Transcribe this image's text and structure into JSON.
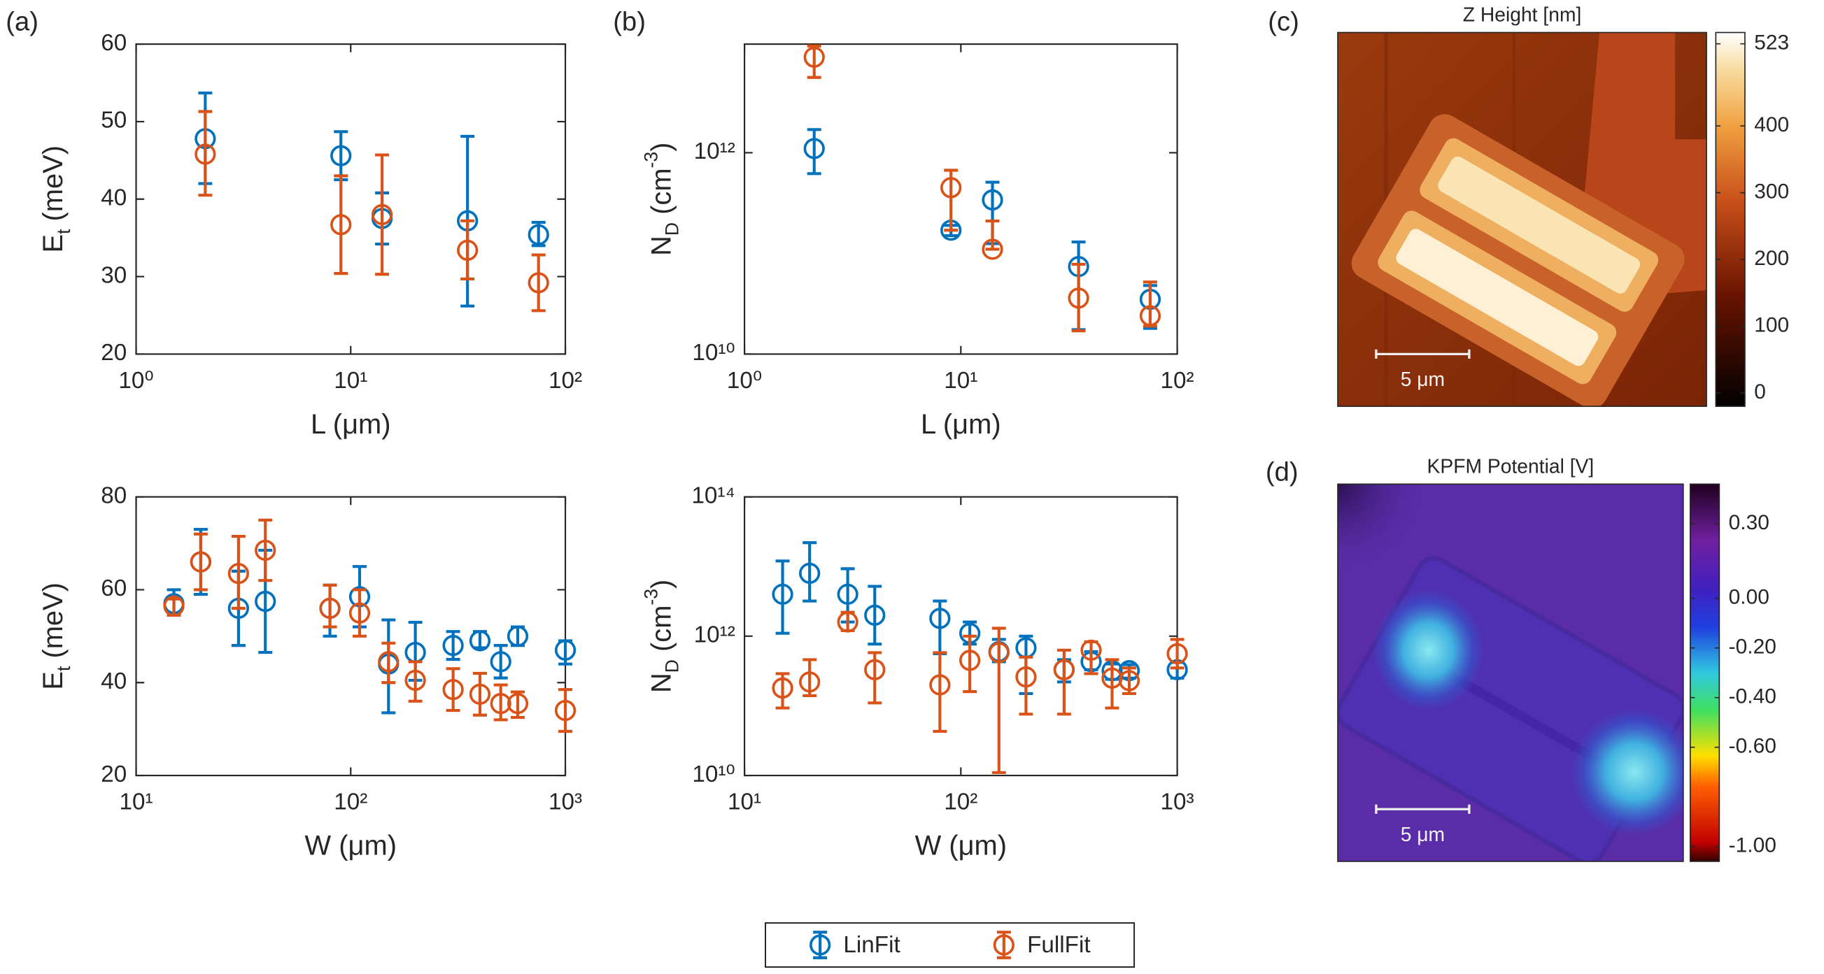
{
  "chart_data": [
    {
      "type": "errorbar",
      "panel": "(a)",
      "xlabel": "L (μm)",
      "ylabel": [
        {
          "text": "E"
        },
        {
          "text": "t",
          "shift": "sub"
        },
        {
          "text": " (meV)"
        }
      ],
      "xscale": "log",
      "yscale": "linear",
      "xlim": [
        1,
        100
      ],
      "ylim": [
        20,
        60
      ],
      "xticks": [
        {
          "value": 1,
          "label": "10⁰"
        },
        {
          "value": 10,
          "label": "10¹"
        },
        {
          "value": 100,
          "label": "10²"
        }
      ],
      "yticks": [
        20,
        30,
        40,
        50,
        60
      ],
      "x": [
        2.1,
        9,
        14,
        35,
        75
      ],
      "series": [
        {
          "name": "LinFit",
          "color": "#0072bd",
          "values": [
            47.8,
            45.6,
            37.5,
            37.2,
            35.4
          ],
          "low": [
            42,
            42.5,
            34.2,
            26.2,
            34
          ],
          "high": [
            53.7,
            48.7,
            40.8,
            48.1,
            37
          ]
        },
        {
          "name": "FullFit",
          "color": "#d95319",
          "values": [
            45.8,
            36.7,
            38,
            33.4,
            29.2
          ],
          "low": [
            40.5,
            30.4,
            30.3,
            29.7,
            25.6
          ],
          "high": [
            51.3,
            43,
            45.7,
            37.2,
            32.8
          ]
        }
      ]
    },
    {
      "type": "errorbar",
      "panel": "(b)",
      "xlabel": "L (μm)",
      "ylabel": [
        {
          "text": "N"
        },
        {
          "text": "D",
          "shift": "sub"
        },
        {
          "text": " (cm"
        },
        {
          "text": "-3",
          "shift": "super"
        },
        {
          "text": ")"
        }
      ],
      "xscale": "log",
      "yscale": "log",
      "xlim": [
        1,
        100
      ],
      "ylim": [
        10000000000.0,
        12000000000000.0
      ],
      "xticks": [
        {
          "value": 1,
          "label": "10⁰"
        },
        {
          "value": 10,
          "label": "10¹"
        },
        {
          "value": 100,
          "label": "10²"
        }
      ],
      "yticks": [
        {
          "value": 10000000000.0,
          "label": "10¹⁰"
        },
        {
          "value": 1000000000000.0,
          "label": "10¹²"
        }
      ],
      "x": [
        2.1,
        9,
        14,
        35,
        75
      ],
      "series": [
        {
          "name": "LinFit",
          "color": "#0072bd",
          "values": [
            1100000000000.0,
            170000000000.0,
            340000000000.0,
            74000000000.0,
            35000000000.0
          ],
          "low": [
            620000000000.0,
            150000000000.0,
            125000000000.0,
            17500000000.0,
            18000000000.0
          ],
          "high": [
            1700000000000.0,
            190000000000.0,
            510000000000.0,
            130000000000.0,
            48000000000.0
          ]
        },
        {
          "name": "FullFit",
          "color": "#d95319",
          "values": [
            8900000000000.0,
            450000000000.0,
            110000000000.0,
            36000000000.0,
            24000000000.0
          ],
          "low": [
            5600000000000.0,
            170000000000.0,
            110000000000.0,
            17000000000.0,
            19000000000.0
          ],
          "high": [
            11500000000000.0,
            670000000000.0,
            210000000000.0,
            78000000000.0,
            52000000000.0
          ]
        }
      ]
    },
    {
      "type": "errorbar",
      "xlabel": "W (μm)",
      "ylabel": [
        {
          "text": "E"
        },
        {
          "text": "t",
          "shift": "sub"
        },
        {
          "text": " (meV)"
        }
      ],
      "xscale": "log",
      "yscale": "linear",
      "xlim": [
        10,
        1000
      ],
      "ylim": [
        20,
        80
      ],
      "xticks": [
        {
          "value": 10,
          "label": "10¹"
        },
        {
          "value": 100,
          "label": "10²"
        },
        {
          "value": 1000,
          "label": "10³"
        }
      ],
      "yticks": [
        20,
        40,
        60,
        80
      ],
      "x": [
        15,
        20,
        30,
        40,
        80,
        110,
        150,
        200,
        300,
        400,
        500,
        600,
        1000
      ],
      "series": [
        {
          "name": "LinFit",
          "color": "#0072bd",
          "values": [
            57,
            66,
            56,
            57.5,
            56,
            58.5,
            44,
            46.5,
            48,
            49,
            44.5,
            50,
            47
          ],
          "low": [
            54.5,
            59,
            48,
            46.5,
            50,
            52,
            33.5,
            40.5,
            45,
            47.5,
            41,
            48,
            44
          ],
          "high": [
            60,
            73,
            64,
            68.5,
            61,
            65,
            53.5,
            53,
            51,
            51,
            48,
            52,
            49
          ]
        },
        {
          "name": "FullFit",
          "color": "#d95319",
          "values": [
            56.5,
            66,
            63.5,
            68.5,
            56,
            55,
            44.5,
            40.5,
            38.5,
            37.5,
            35.5,
            35.5,
            34
          ],
          "low": [
            54.5,
            60,
            56,
            62,
            52,
            50,
            40,
            36,
            34,
            33,
            32,
            32.5,
            29.5
          ],
          "high": [
            58,
            72,
            71.5,
            75,
            61,
            60,
            48.5,
            44.5,
            43,
            42,
            39.5,
            38,
            38.5
          ]
        }
      ]
    },
    {
      "type": "errorbar",
      "xlabel": "W (μm)",
      "ylabel": [
        {
          "text": "N"
        },
        {
          "text": "D",
          "shift": "sub"
        },
        {
          "text": " (cm"
        },
        {
          "text": "-3",
          "shift": "super"
        },
        {
          "text": ")"
        }
      ],
      "xscale": "log",
      "yscale": "log",
      "xlim": [
        10,
        1000
      ],
      "ylim": [
        10000000000.0,
        100000000000000.0
      ],
      "xticks": [
        {
          "value": 10,
          "label": "10¹"
        },
        {
          "value": 100,
          "label": "10²"
        },
        {
          "value": 1000,
          "label": "10³"
        }
      ],
      "yticks": [
        {
          "value": 10000000000.0,
          "label": "10¹⁰"
        },
        {
          "value": 1000000000000.0,
          "label": "10¹²"
        },
        {
          "value": 100000000000000.0,
          "label": "10¹⁴"
        }
      ],
      "x": [
        15,
        20,
        30,
        40,
        80,
        110,
        150,
        200,
        300,
        400,
        500,
        600,
        1000
      ],
      "series": [
        {
          "name": "LinFit",
          "color": "#0072bd",
          "values": [
            4000000000000.0,
            8000000000000.0,
            4000000000000.0,
            2000000000000.0,
            1800000000000.0,
            1100000000000.0,
            600000000000.0,
            680000000000.0,
            330000000000.0,
            430000000000.0,
            320000000000.0,
            320000000000.0,
            330000000000.0
          ],
          "low": [
            1100000000000.0,
            3200000000000.0,
            1600000000000.0,
            770000000000.0,
            560000000000.0,
            770000000000.0,
            430000000000.0,
            150000000000.0,
            220000000000.0,
            330000000000.0,
            240000000000.0,
            250000000000.0,
            250000000000.0
          ],
          "high": [
            12000000000000.0,
            22000000000000.0,
            9300000000000.0,
            5200000000000.0,
            3200000000000.0,
            1600000000000.0,
            900000000000.0,
            1000000000000.0,
            460000000000.0,
            600000000000.0,
            400000000000.0,
            390000000000.0,
            420000000000.0
          ]
        },
        {
          "name": "FullFit",
          "color": "#d95319",
          "values": [
            180000000000.0,
            220000000000.0,
            1600000000000.0,
            330000000000.0,
            200000000000.0,
            450000000000.0,
            580000000000.0,
            260000000000.0,
            330000000000.0,
            630000000000.0,
            250000000000.0,
            230000000000.0,
            560000000000.0
          ],
          "low": [
            93000000000.0,
            140000000000.0,
            1200000000000.0,
            110000000000.0,
            43000000000.0,
            160000000000.0,
            11000000000.0,
            76000000000.0,
            76000000000.0,
            290000000000.0,
            93000000000.0,
            150000000000.0,
            350000000000.0
          ],
          "high": [
            290000000000.0,
            460000000000.0,
            2200000000000.0,
            580000000000.0,
            580000000000.0,
            1000000000000.0,
            1300000000000.0,
            500000000000.0,
            630000000000.0,
            830000000000.0,
            460000000000.0,
            350000000000.0,
            900000000000.0
          ]
        }
      ]
    },
    {
      "type": "image",
      "panel": "(c)",
      "title": "Z Height [nm]",
      "scale_bar": "5 μm",
      "clim": [
        -20,
        540
      ],
      "cticks": [
        523,
        400,
        300,
        200,
        100,
        0
      ]
    },
    {
      "type": "image",
      "panel": "(d)",
      "title": "KPFM Potential [V]",
      "scale_bar": "5 μm",
      "clim": [
        -1.06,
        0.46
      ],
      "cticks": [
        {
          "value": 0.3,
          "label": "0.30"
        },
        {
          "value": 0,
          "label": "0.00"
        },
        {
          "value": -0.2,
          "label": "-0.20"
        },
        {
          "value": -0.4,
          "label": "-0.40"
        },
        {
          "value": -0.6,
          "label": "-0.60"
        },
        {
          "value": -1,
          "label": "-1.00"
        }
      ]
    }
  ]
}
